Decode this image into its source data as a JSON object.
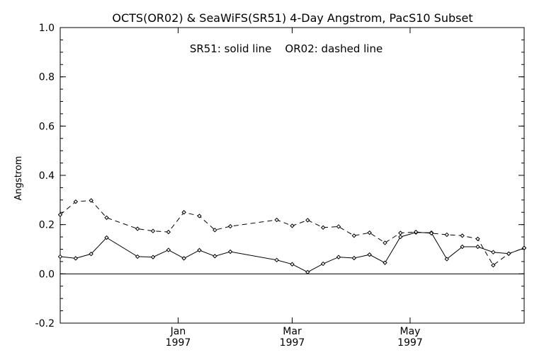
{
  "chart_data": {
    "type": "line",
    "title": "OCTS(OR02) & SeaWiFS(SR51) 4-Day Angstrom, PacS10 Subset",
    "annotation": "SR51: solid line    OR02: dashed line",
    "ylabel": "Angstrom",
    "xlabel": "",
    "ylim": [
      -0.2,
      1.0
    ],
    "y_ticks": [
      "-0.2",
      "0.0",
      "0.2",
      "0.4",
      "0.6",
      "0.8",
      "1.0"
    ],
    "x_unit": "days since 1996-11-01",
    "xlim": [
      0,
      240
    ],
    "x_ticks": [
      {
        "x": 61,
        "label": "Jan",
        "year": "1997"
      },
      {
        "x": 120,
        "label": "Mar",
        "year": "1997"
      },
      {
        "x": 181,
        "label": "May",
        "year": "1997"
      }
    ],
    "grid": false,
    "zero_line": true,
    "series": [
      {
        "name": "SR51",
        "style": "solid",
        "points": [
          [
            0,
            0.07
          ],
          [
            8,
            0.063
          ],
          [
            16,
            0.081
          ],
          [
            24,
            0.147
          ],
          [
            40,
            0.07
          ],
          [
            48,
            0.068
          ],
          [
            56,
            0.097
          ],
          [
            64,
            0.063
          ],
          [
            72,
            0.096
          ],
          [
            80,
            0.072
          ],
          [
            88,
            0.09
          ],
          [
            112,
            0.056
          ],
          [
            120,
            0.039
          ],
          [
            128,
            0.007
          ],
          [
            136,
            0.041
          ],
          [
            144,
            0.068
          ],
          [
            152,
            0.064
          ],
          [
            160,
            0.078
          ],
          [
            168,
            0.045
          ],
          [
            176,
            0.15
          ],
          [
            184,
            0.168
          ],
          [
            192,
            0.167
          ],
          [
            200,
            0.06
          ],
          [
            208,
            0.11
          ],
          [
            216,
            0.11
          ],
          [
            224,
            0.088
          ],
          [
            232,
            0.082
          ],
          [
            240,
            0.105
          ]
        ]
      },
      {
        "name": "OR02",
        "style": "dashed",
        "points": [
          [
            0,
            0.24
          ],
          [
            8,
            0.293
          ],
          [
            16,
            0.298
          ],
          [
            24,
            0.228
          ],
          [
            40,
            0.183
          ],
          [
            48,
            0.174
          ],
          [
            56,
            0.17
          ],
          [
            64,
            0.25
          ],
          [
            72,
            0.235
          ],
          [
            80,
            0.178
          ],
          [
            88,
            0.193
          ],
          [
            112,
            0.219
          ],
          [
            120,
            0.195
          ],
          [
            128,
            0.218
          ],
          [
            136,
            0.188
          ],
          [
            144,
            0.192
          ],
          [
            152,
            0.155
          ],
          [
            160,
            0.167
          ],
          [
            168,
            0.126
          ],
          [
            176,
            0.166
          ],
          [
            184,
            0.17
          ],
          [
            192,
            0.165
          ],
          [
            200,
            0.159
          ],
          [
            208,
            0.155
          ],
          [
            216,
            0.142
          ],
          [
            224,
            0.035
          ],
          [
            232,
            0.082
          ],
          [
            240,
            0.105
          ]
        ]
      }
    ]
  }
}
